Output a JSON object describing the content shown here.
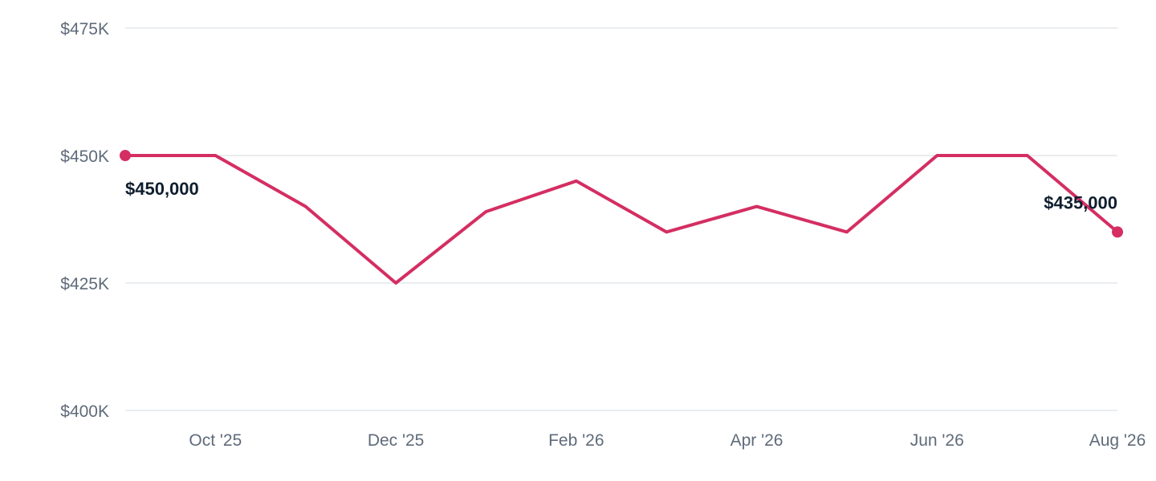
{
  "chart_data": {
    "type": "line",
    "title": "",
    "xlabel": "",
    "ylabel": "",
    "ylim": [
      400000,
      475000
    ],
    "y_ticks": [
      {
        "value": 475000,
        "label": "$475K"
      },
      {
        "value": 450000,
        "label": "$450K"
      },
      {
        "value": 425000,
        "label": "$425K"
      },
      {
        "value": 400000,
        "label": "$400K"
      }
    ],
    "x": [
      "2025-09",
      "2025-10",
      "2025-11",
      "2025-12",
      "2026-01",
      "2026-02",
      "2026-03",
      "2026-04",
      "2026-05",
      "2026-06",
      "2026-07",
      "2026-08"
    ],
    "x_ticks": [
      {
        "x": "2025-10",
        "label": "Oct '25"
      },
      {
        "x": "2025-12",
        "label": "Dec '25"
      },
      {
        "x": "2026-02",
        "label": "Feb '26"
      },
      {
        "x": "2026-04",
        "label": "Apr '26"
      },
      {
        "x": "2026-06",
        "label": "Jun '26"
      },
      {
        "x": "2026-08",
        "label": "Aug '26"
      }
    ],
    "series": [
      {
        "values": [
          450000,
          450000,
          440000,
          425000,
          439000,
          445000,
          435000,
          440000,
          435000,
          450000,
          450000,
          435000
        ]
      }
    ],
    "data_labels": [
      {
        "x": "2025-09",
        "value": 450000,
        "text": "$450,000"
      },
      {
        "x": "2026-08",
        "value": 435000,
        "text": "$435,000"
      }
    ],
    "grid": true,
    "legend": "none",
    "colors": {
      "line": "#d42e62",
      "grid": "#e4e7ec",
      "tick_text": "#5f6b7a",
      "label_text": "#0f1e2e"
    }
  }
}
